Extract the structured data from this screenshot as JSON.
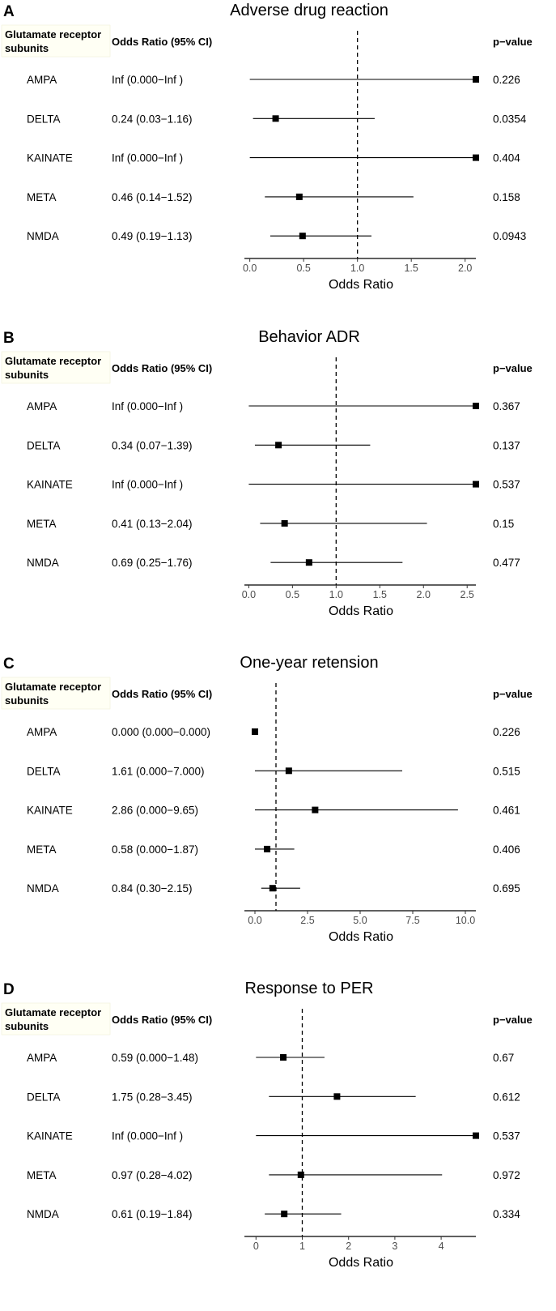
{
  "figure": {
    "description_columns": {
      "subunit_header_line1": "Glutamate receptor",
      "subunit_header_line2": "subunits",
      "or_header": "Odds Ratio (95% CI)",
      "p_header": "p−value"
    }
  },
  "chart_data": [
    {
      "type": "forest",
      "panel": "A",
      "title": "Adverse drug reaction",
      "xlabel": "Odds Ratio",
      "xlim": [
        -0.05,
        2.1
      ],
      "ticks": [
        0,
        0.5,
        1,
        1.5,
        2
      ],
      "tick_labels": [
        "0.0",
        "0.5",
        "1.0",
        "1.5",
        "2.0"
      ],
      "reference_line": 1,
      "rows": [
        {
          "subunit": "AMPA",
          "or_text": "Inf (0.000−Inf )",
          "or": "Inf",
          "lower": 0,
          "upper": "Inf",
          "p": "0.226"
        },
        {
          "subunit": "DELTA",
          "or_text": "0.24 (0.03−1.16)",
          "or": 0.24,
          "lower": 0.03,
          "upper": 1.16,
          "p": "0.0354"
        },
        {
          "subunit": "KAINATE",
          "or_text": "Inf (0.000−Inf )",
          "or": "Inf",
          "lower": 0,
          "upper": "Inf",
          "p": "0.404"
        },
        {
          "subunit": "META",
          "or_text": "0.46 (0.14−1.52)",
          "or": 0.46,
          "lower": 0.14,
          "upper": 1.52,
          "p": "0.158"
        },
        {
          "subunit": "NMDA",
          "or_text": "0.49 (0.19−1.13)",
          "or": 0.49,
          "lower": 0.19,
          "upper": 1.13,
          "p": "0.0943"
        }
      ]
    },
    {
      "type": "forest",
      "panel": "B",
      "title": "Behavior ADR",
      "xlabel": "Odds Ratio",
      "xlim": [
        -0.05,
        2.6
      ],
      "ticks": [
        0,
        0.5,
        1,
        1.5,
        2,
        2.5
      ],
      "tick_labels": [
        "0.0",
        "0.5",
        "1.0",
        "1.5",
        "2.0",
        "2.5"
      ],
      "reference_line": 1,
      "rows": [
        {
          "subunit": "AMPA",
          "or_text": "Inf (0.000−Inf )",
          "or": "Inf",
          "lower": 0,
          "upper": "Inf",
          "p": "0.367"
        },
        {
          "subunit": "DELTA",
          "or_text": "0.34 (0.07−1.39)",
          "or": 0.34,
          "lower": 0.07,
          "upper": 1.39,
          "p": "0.137"
        },
        {
          "subunit": "KAINATE",
          "or_text": "Inf (0.000−Inf )",
          "or": "Inf",
          "lower": 0,
          "upper": "Inf",
          "p": "0.537"
        },
        {
          "subunit": "META",
          "or_text": "0.41 (0.13−2.04)",
          "or": 0.41,
          "lower": 0.13,
          "upper": 2.04,
          "p": "0.15"
        },
        {
          "subunit": "NMDA",
          "or_text": "0.69 (0.25−1.76)",
          "or": 0.69,
          "lower": 0.25,
          "upper": 1.76,
          "p": "0.477"
        }
      ]
    },
    {
      "type": "forest",
      "panel": "C",
      "title": "One-year retension",
      "xlabel": "Odds Ratio",
      "xlim": [
        -0.5,
        10.5
      ],
      "ticks": [
        0,
        2.5,
        5,
        7.5,
        10
      ],
      "tick_labels": [
        "0.0",
        "2.5",
        "5.0",
        "7.5",
        "10.0"
      ],
      "reference_line": 1,
      "rows": [
        {
          "subunit": "AMPA",
          "or_text": "0.000 (0.000−0.000)",
          "or": 0,
          "lower": 0,
          "upper": 0,
          "p": "0.226"
        },
        {
          "subunit": "DELTA",
          "or_text": "1.61 (0.000−7.000)",
          "or": 1.61,
          "lower": 0,
          "upper": 7.0,
          "p": "0.515"
        },
        {
          "subunit": "KAINATE",
          "or_text": "2.86 (0.000−9.65)",
          "or": 2.86,
          "lower": 0,
          "upper": 9.65,
          "p": "0.461"
        },
        {
          "subunit": "META",
          "or_text": "0.58 (0.000−1.87)",
          "or": 0.58,
          "lower": 0,
          "upper": 1.87,
          "p": "0.406"
        },
        {
          "subunit": "NMDA",
          "or_text": "0.84 (0.30−2.15)",
          "or": 0.84,
          "lower": 0.3,
          "upper": 2.15,
          "p": "0.695"
        }
      ]
    },
    {
      "type": "forest",
      "panel": "D",
      "title": "Response to PER",
      "xlabel": "Odds Ratio",
      "xlim": [
        -0.25,
        4.75
      ],
      "ticks": [
        0,
        1,
        2,
        3,
        4
      ],
      "tick_labels": [
        "0",
        "1",
        "2",
        "3",
        "4"
      ],
      "reference_line": 1,
      "rows": [
        {
          "subunit": "AMPA",
          "or_text": "0.59 (0.000−1.48)",
          "or": 0.59,
          "lower": 0,
          "upper": 1.48,
          "p": "0.67"
        },
        {
          "subunit": "DELTA",
          "or_text": "1.75 (0.28−3.45)",
          "or": 1.75,
          "lower": 0.28,
          "upper": 3.45,
          "p": "0.612"
        },
        {
          "subunit": "KAINATE",
          "or_text": "Inf (0.000−Inf )",
          "or": "Inf",
          "lower": 0,
          "upper": "Inf",
          "p": "0.537"
        },
        {
          "subunit": "META",
          "or_text": "0.97 (0.28−4.02)",
          "or": 0.97,
          "lower": 0.28,
          "upper": 4.02,
          "p": "0.972"
        },
        {
          "subunit": "NMDA",
          "or_text": "0.61 (0.19−1.84)",
          "or": 0.61,
          "lower": 0.19,
          "upper": 1.84,
          "p": "0.334"
        }
      ]
    }
  ]
}
